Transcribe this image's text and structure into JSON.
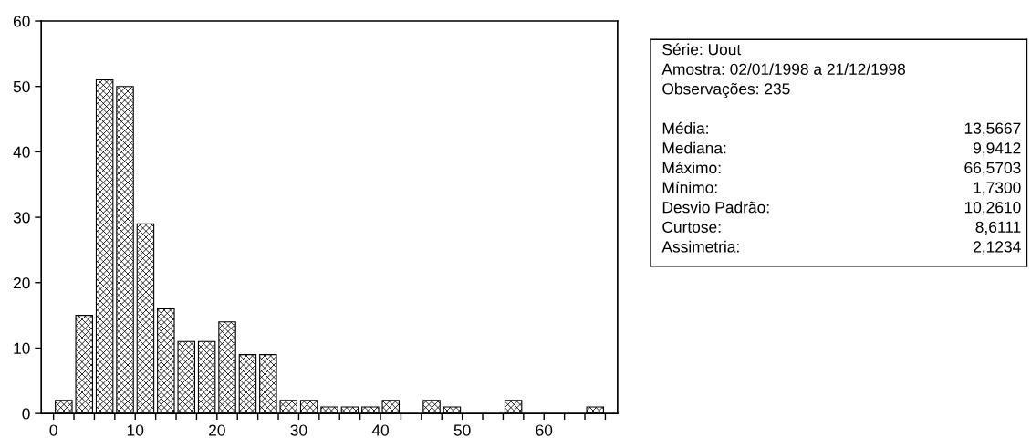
{
  "chart_data": [
    {
      "type": "histogram",
      "color": "#000000",
      "bins": [
        0,
        2.5,
        5,
        7.5,
        10,
        12.5,
        15,
        17.5,
        20,
        22.5,
        25,
        27.5,
        30,
        32.5,
        35,
        37.5,
        40,
        42.5,
        45,
        47.5,
        50,
        52.5,
        55,
        57.5,
        60,
        62.5,
        65,
        67.5
      ],
      "values": [
        2,
        15,
        51,
        50,
        29,
        16,
        11,
        11,
        14,
        9,
        9,
        2,
        2,
        1,
        1,
        1,
        2,
        0,
        2,
        1,
        0,
        0,
        2,
        0,
        0,
        0,
        1
      ],
      "xlim": [
        -1.5,
        69
      ],
      "ylim": [
        0,
        60
      ],
      "xticks": [
        0,
        {
          "value": 2.5,
          "label": null
        },
        {
          "value": 5,
          "label": null
        },
        {
          "value": 7.5,
          "label": null
        },
        10,
        {
          "value": 12.5,
          "label": null
        },
        {
          "value": 15,
          "label": null
        },
        {
          "value": 17.5,
          "label": null
        },
        20,
        {
          "value": 22.5,
          "label": null
        },
        {
          "value": 25,
          "label": null
        },
        {
          "value": 27.5,
          "label": null
        },
        30,
        {
          "value": 32.5,
          "label": null
        },
        {
          "value": 35,
          "label": null
        },
        {
          "value": 37.5,
          "label": null
        },
        40,
        {
          "value": 42.5,
          "label": null
        },
        {
          "value": 45,
          "label": null
        },
        {
          "value": 47.5,
          "label": null
        },
        50,
        {
          "value": 52.5,
          "label": null
        },
        {
          "value": 55,
          "label": null
        },
        {
          "value": 57.5,
          "label": null
        },
        60,
        {
          "value": 62.5,
          "label": null
        },
        {
          "value": 65,
          "label": null
        },
        {
          "value": 67.5,
          "label": null
        }
      ],
      "yticks": [
        0,
        10,
        20,
        30,
        40,
        50,
        60
      ],
      "grid": false,
      "legend": false
    },
    {
      "type": "other",
      "title": "Série: Uout",
      "subtitle": "Amostra: 02/01/1998 a 21/12/1998\nObservações: 235",
      "annotations": [
        "Média:",
        "13,5667",
        "Mediana:",
        "9,9412",
        "Máximo:",
        "66,5703",
        "Mínimo:",
        "1,7300",
        "Desvio Padrão:",
        "10,2610",
        "Curtose:",
        "8,6111",
        "Assimetria:",
        "2,1234"
      ]
    }
  ]
}
